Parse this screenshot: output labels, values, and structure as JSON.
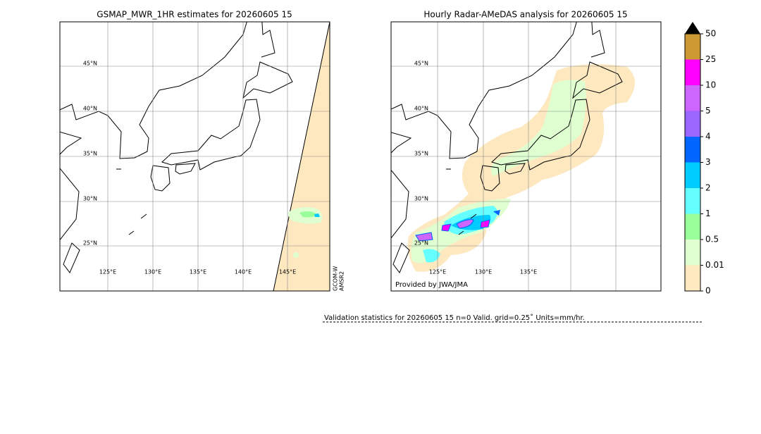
{
  "left_map": {
    "title": "GSMAP_MWR_1HR estimates for 20260605 15",
    "lat_labels": [
      "45°N",
      "40°N",
      "35°N",
      "30°N",
      "25°N"
    ],
    "lon_labels": [
      "125°E",
      "130°E",
      "135°E",
      "140°E",
      "145°E"
    ],
    "sensor_lines": [
      "GCOM-W",
      "AMSR2"
    ]
  },
  "right_map": {
    "title": "Hourly Radar-AMeDAS analysis for 20260605 15",
    "lat_labels": [
      "45°N",
      "40°N",
      "35°N",
      "30°N",
      "25°N"
    ],
    "lon_labels": [
      "125°E",
      "130°E",
      "135°E"
    ],
    "credit": "Provided by JWA/JMA"
  },
  "colorbar": {
    "ticks": [
      0,
      0.01,
      0.5,
      1,
      2,
      3,
      4,
      5,
      10,
      25,
      50
    ],
    "colors": [
      "#fde8bf",
      "#e0ffd0",
      "#99ff99",
      "#66ffff",
      "#00ccff",
      "#0066ff",
      "#9966ff",
      "#cc66ff",
      "#ff00ff",
      "#cc9933"
    ],
    "extend_color": "#000000"
  },
  "footer": "Validation statistics for 20260605  15  n=0 Valid. grid=0.25˚ Units=mm/hr."
}
